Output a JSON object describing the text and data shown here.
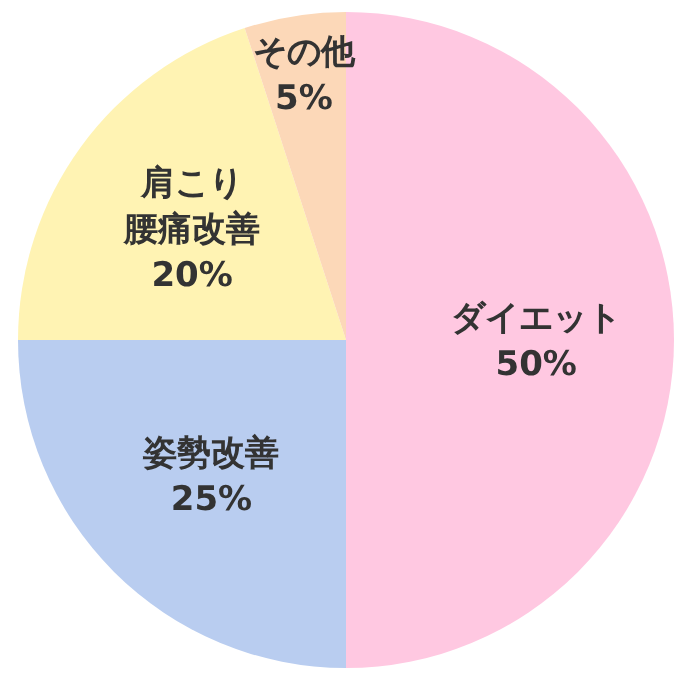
{
  "chart_data": {
    "type": "pie",
    "categories": [
      "ダイエット",
      "姿勢改善",
      "肩こり腰痛改善",
      "その他"
    ],
    "values": [
      50,
      25,
      20,
      5
    ],
    "value_labels": [
      "50%",
      "25%",
      "20%",
      "5%"
    ],
    "colors": [
      "#ffc8e1",
      "#b9cdf0",
      "#fff3b3",
      "#fcd8b8"
    ]
  }
}
